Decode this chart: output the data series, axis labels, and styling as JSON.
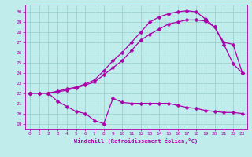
{
  "xlabel": "Windchill (Refroidissement éolien,°C)",
  "bg_color": "#c0ecec",
  "grid_color": "#99cccc",
  "line_color": "#aa00aa",
  "markersize": 2.5,
  "linewidth": 0.9,
  "xlim": [
    -0.5,
    23.5
  ],
  "ylim": [
    18.5,
    30.7
  ],
  "xticks": [
    0,
    1,
    2,
    3,
    4,
    5,
    6,
    7,
    8,
    9,
    10,
    11,
    12,
    13,
    14,
    15,
    16,
    17,
    18,
    19,
    20,
    21,
    22,
    23
  ],
  "yticks": [
    19,
    20,
    21,
    22,
    23,
    24,
    25,
    26,
    27,
    28,
    29,
    30
  ],
  "line1_x": [
    0,
    1,
    2,
    3,
    4,
    5,
    6,
    7,
    8,
    9,
    10,
    11,
    12,
    13,
    14,
    15,
    16,
    17,
    18,
    19,
    20,
    21,
    22,
    23
  ],
  "line1_y": [
    22.0,
    22.0,
    22.0,
    22.2,
    22.4,
    22.6,
    22.9,
    23.3,
    24.2,
    25.2,
    26.0,
    27.0,
    28.0,
    29.0,
    29.5,
    29.8,
    30.0,
    30.1,
    30.0,
    29.3,
    28.5,
    26.8,
    24.9,
    24.0
  ],
  "line2_x": [
    0,
    1,
    2,
    3,
    4,
    5,
    6,
    7,
    8,
    9,
    10,
    11,
    12,
    13,
    14,
    15,
    16,
    17,
    18,
    19,
    20,
    21,
    22,
    23
  ],
  "line2_y": [
    22.0,
    22.0,
    22.0,
    22.1,
    22.3,
    22.5,
    22.8,
    23.1,
    23.8,
    24.5,
    25.2,
    26.2,
    27.2,
    27.8,
    28.3,
    28.8,
    29.0,
    29.2,
    29.2,
    29.1,
    28.5,
    27.0,
    26.8,
    24.0
  ],
  "line3_x": [
    0,
    1,
    2,
    3,
    4,
    5,
    6,
    7,
    8,
    9,
    10,
    11,
    12,
    13,
    14,
    15,
    16,
    17,
    18,
    19,
    20,
    21,
    22,
    23
  ],
  "line3_y": [
    22.0,
    22.0,
    22.0,
    21.2,
    20.7,
    20.2,
    20.0,
    19.3,
    19.0,
    21.5,
    21.1,
    21.0,
    21.0,
    21.0,
    21.0,
    21.0,
    20.8,
    20.6,
    20.5,
    20.3,
    20.2,
    20.1,
    20.1,
    20.0
  ]
}
